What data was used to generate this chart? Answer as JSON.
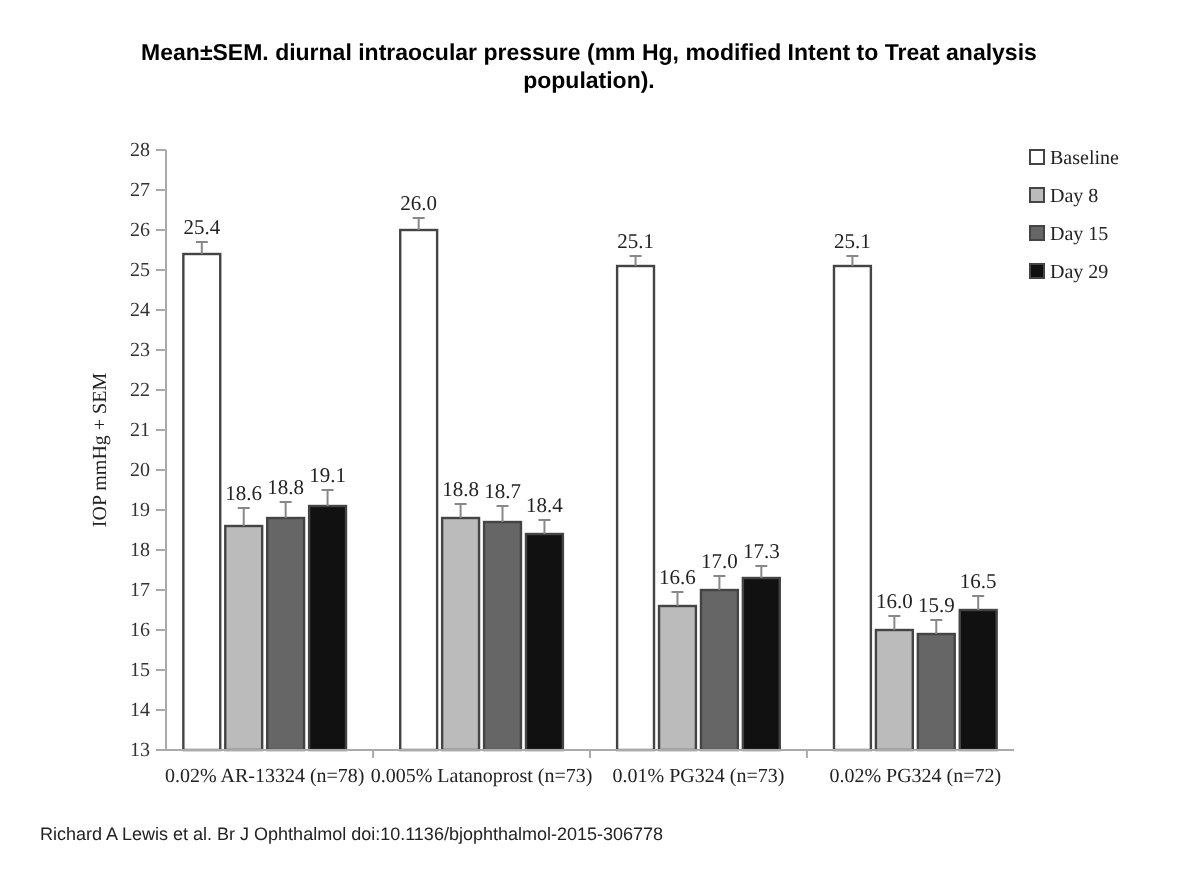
{
  "chart_data": {
    "type": "bar",
    "title": "Mean±SEM. diurnal intraocular pressure (mm Hg, modified Intent to Treat analysis population).",
    "ylabel": "IOP mmHg + SEM",
    "categories": [
      "0.02% AR-13324 (n=78)",
      "0.005% Latanoprost (n=73)",
      "0.01% PG324 (n=73)",
      "0.02% PG324 (n=72)"
    ],
    "series": [
      {
        "name": "Baseline",
        "color": "#ffffff",
        "values": [
          25.4,
          26.0,
          25.1,
          25.1
        ],
        "value_labels": [
          "25.4",
          "26.0",
          "25.1",
          "25.1"
        ],
        "errors": [
          [
            25.4,
            25.7
          ],
          [
            26.0,
            26.3
          ],
          [
            25.1,
            25.35
          ],
          [
            25.1,
            25.35
          ]
        ]
      },
      {
        "name": "Day 8",
        "color": "#bbbbbb",
        "values": [
          18.6,
          18.8,
          16.6,
          16.0
        ],
        "value_labels": [
          "18.6",
          "18.8",
          "16.6",
          "16.0"
        ],
        "errors": [
          [
            18.6,
            19.05
          ],
          [
            18.8,
            19.15
          ],
          [
            16.6,
            16.95
          ],
          [
            16.0,
            16.35
          ]
        ]
      },
      {
        "name": "Day 15",
        "color": "#666666",
        "values": [
          18.8,
          18.7,
          17.0,
          15.9
        ],
        "value_labels": [
          "18.8",
          "18.7",
          "17.0",
          "15.9"
        ],
        "errors": [
          [
            18.8,
            19.2
          ],
          [
            18.7,
            19.1
          ],
          [
            17.0,
            17.35
          ],
          [
            15.9,
            16.25
          ]
        ]
      },
      {
        "name": "Day 29",
        "color": "#111111",
        "values": [
          19.1,
          18.4,
          17.3,
          16.5
        ],
        "value_labels": [
          "19.1",
          "18.4",
          "17.3",
          "16.5"
        ],
        "errors": [
          [
            19.1,
            19.5
          ],
          [
            18.4,
            18.75
          ],
          [
            17.3,
            17.6
          ],
          [
            16.5,
            16.85
          ]
        ]
      }
    ],
    "ylim": [
      13,
      28
    ],
    "yticks": [
      13,
      14,
      15,
      16,
      17,
      18,
      19,
      20,
      21,
      22,
      23,
      24,
      25,
      26,
      27,
      28
    ],
    "legend": "top right",
    "annotations": [
      "Richard A Lewis et al. Br J Ophthalmol doi:10.1136/bjophthalmol-2015-306778"
    ]
  }
}
